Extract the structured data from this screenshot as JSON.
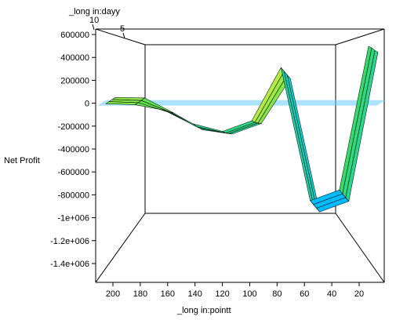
{
  "chart_data": {
    "type": "surface3d",
    "title": "",
    "zlabel": "Net Profit",
    "xlabel": "_long in:pointt",
    "ylabel": "_long in:dayy",
    "z_ticks": [
      "600000",
      "400000",
      "200000",
      "0",
      "-200000",
      "-400000",
      "-600000",
      "-800000",
      "-1e+006",
      "-1.2e+006",
      "-1.4e+006"
    ],
    "x_ticks": [
      "200",
      "180",
      "160",
      "140",
      "120",
      "100",
      "80",
      "60",
      "40",
      "20"
    ],
    "y_ticks": [
      "10",
      "5"
    ],
    "zlim": [
      -1500000,
      650000
    ],
    "x_values": [
      200,
      180,
      160,
      140,
      120,
      100,
      80,
      60,
      40,
      20
    ],
    "depth_series": [
      {
        "values": [
          10000,
          0,
          -50000,
          -180000,
          -250000,
          -150000,
          350000,
          -900000,
          -800000,
          550000
        ]
      },
      {
        "values": [
          15000,
          5000,
          -80000,
          -220000,
          -280000,
          -180000,
          300000,
          -950000,
          -850000,
          520000
        ]
      },
      {
        "values": [
          20000,
          10000,
          -100000,
          -250000,
          -300000,
          -200000,
          250000,
          -1000000,
          -900000,
          480000
        ]
      },
      {
        "values": [
          25000,
          20000,
          -120000,
          -280000,
          -320000,
          -220000,
          200000,
          -1050000,
          -950000,
          450000
        ]
      }
    ],
    "reference_plane_z": 0,
    "colors": {
      "plane": "#66ccff",
      "low": "#00ccff",
      "mid": "#33dd66",
      "high": "#ff33aa"
    }
  }
}
